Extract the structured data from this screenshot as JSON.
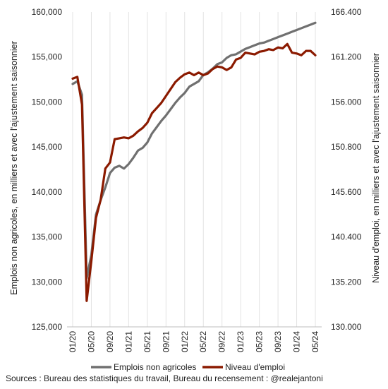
{
  "chart_data": {
    "type": "line",
    "x": [
      "01/20",
      "02/20",
      "03/20",
      "04/20",
      "05/20",
      "06/20",
      "07/20",
      "08/20",
      "09/20",
      "10/20",
      "11/20",
      "12/20",
      "01/21",
      "02/21",
      "03/21",
      "04/21",
      "05/21",
      "06/21",
      "07/21",
      "08/21",
      "09/21",
      "10/21",
      "11/21",
      "12/21",
      "01/22",
      "02/22",
      "03/22",
      "04/22",
      "05/22",
      "06/22",
      "07/22",
      "08/22",
      "09/22",
      "10/22",
      "11/22",
      "12/22",
      "01/23",
      "02/23",
      "03/23",
      "04/23",
      "05/23",
      "06/23",
      "07/23",
      "08/23",
      "09/23",
      "10/23",
      "11/23",
      "12/23",
      "01/24",
      "02/24",
      "03/24",
      "04/24",
      "05/24"
    ],
    "x_tick_labels": [
      "01/20",
      "05/20",
      "09/20",
      "01/21",
      "05/21",
      "09/21",
      "01/22",
      "05/22",
      "09/22",
      "01/23",
      "05/23",
      "09/23",
      "01/24",
      "05/24"
    ],
    "series": [
      {
        "name": "Emplois non agricoles",
        "axis": "left",
        "color": "#707070",
        "values": [
          152000,
          152300,
          150800,
          130400,
          133000,
          137500,
          139100,
          140500,
          142100,
          142700,
          142900,
          142600,
          143100,
          143800,
          144600,
          144900,
          145500,
          146500,
          147200,
          147900,
          148500,
          149200,
          149900,
          150500,
          151000,
          151700,
          152000,
          152300,
          153000,
          153300,
          153700,
          154200,
          154400,
          154900,
          155200,
          155300,
          155600,
          155900,
          156100,
          156300,
          156500,
          156600,
          156800,
          157000,
          157200,
          157400,
          157600,
          157800,
          158000,
          158200,
          158400,
          158600,
          158800
        ]
      },
      {
        "name": "Niveau d'emploi",
        "axis": "right",
        "color": "#8B1A00",
        "values": [
          158700,
          158900,
          155700,
          133000,
          137600,
          142600,
          144700,
          148300,
          149000,
          151700,
          151800,
          151900,
          151800,
          152100,
          152600,
          153000,
          153600,
          154700,
          155300,
          155900,
          156700,
          157500,
          158300,
          158800,
          159200,
          159400,
          159100,
          159400,
          159100,
          159300,
          159800,
          160100,
          160000,
          159700,
          160000,
          160900,
          161100,
          161700,
          161600,
          161500,
          161800,
          161900,
          162100,
          162000,
          162300,
          162200,
          162700,
          161700,
          161600,
          161400,
          161900,
          161900,
          161400
        ]
      }
    ],
    "y_left": {
      "label": "Emplois non agricoles, en milliers et avec l'ajustement saisonnier",
      "ylim": [
        125000,
        160000
      ],
      "tick_labels": [
        "125,000",
        "130,000",
        "135,000",
        "140,000",
        "145,000",
        "150,000",
        "155,000",
        "160,000"
      ]
    },
    "y_right": {
      "label": "Niveau d'emploi, en milliers et avec l'ajustement saisonnier",
      "ylim": [
        130000,
        166400
      ],
      "tick_labels": [
        "130.000",
        "135.200",
        "140.400",
        "145.600",
        "150.800",
        "156.000",
        "161.200",
        "166.400"
      ]
    },
    "grid": "vertical",
    "legend_position": "bottom",
    "source": "Sources : Bureau des statistiques du travail, Bureau du recensement : @realejantoni"
  }
}
